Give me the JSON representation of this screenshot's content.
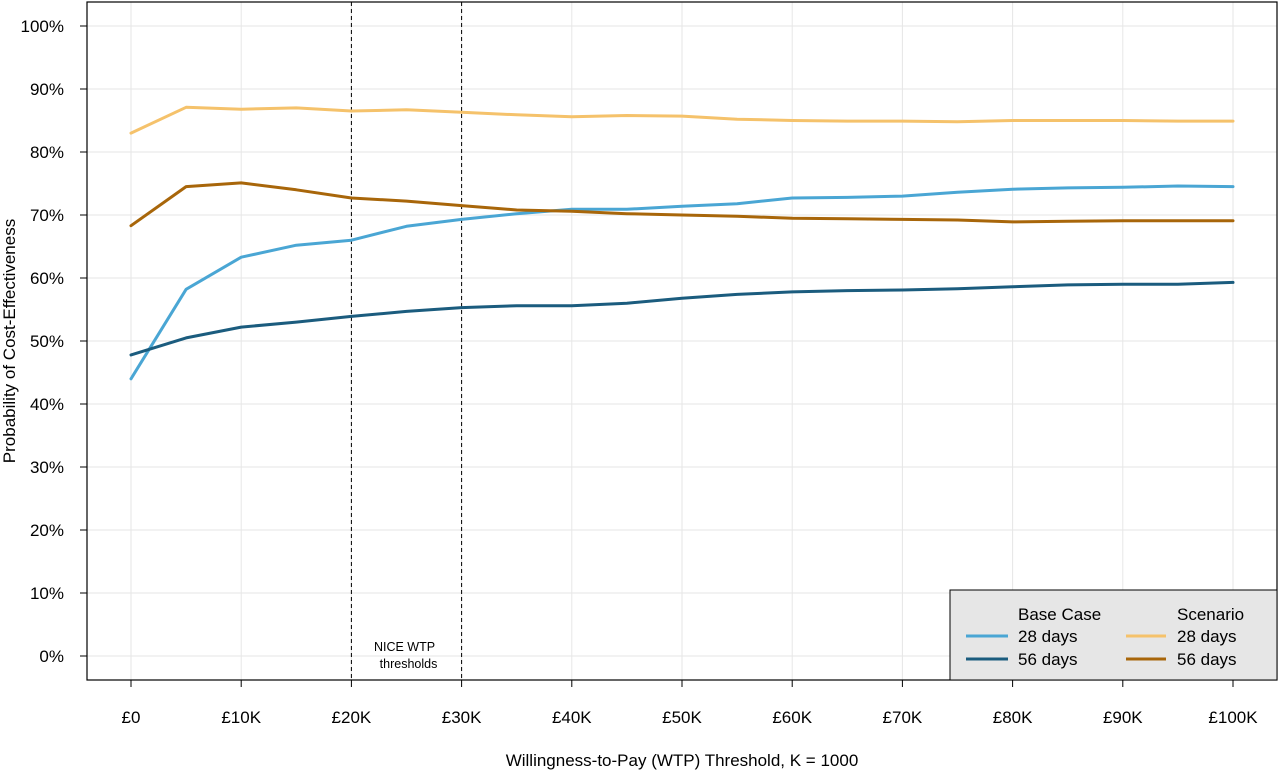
{
  "chart_data": {
    "type": "line",
    "title": "",
    "xlabel": "Willingness-to-Pay (WTP) Threshold, K = 1000",
    "ylabel": "Probability of Cost-Effectiveness",
    "xlim": [
      0,
      100000
    ],
    "ylim": [
      0,
      1
    ],
    "grid": true,
    "x_ticks": [
      0,
      10000,
      20000,
      30000,
      40000,
      50000,
      60000,
      70000,
      80000,
      90000,
      100000
    ],
    "x_tick_labels": [
      "£0",
      "£10K",
      "£20K",
      "£30K",
      "£40K",
      "£50K",
      "£60K",
      "£70K",
      "£80K",
      "£90K",
      "£100K"
    ],
    "y_ticks": [
      0,
      0.1,
      0.2,
      0.3,
      0.4,
      0.5,
      0.6,
      0.7,
      0.8,
      0.9,
      1.0
    ],
    "y_tick_labels": [
      "0%",
      "10%",
      "20%",
      "30%",
      "40%",
      "50%",
      "60%",
      "70%",
      "80%",
      "90%",
      "100%"
    ],
    "reference_lines": [
      20000,
      30000
    ],
    "annotation": "NICE WTP\nthresholds",
    "legend": {
      "placement": "bottom-right",
      "groups": [
        {
          "title": "Base Case",
          "entries": [
            "28 days",
            "56 days"
          ]
        },
        {
          "title": "Scenario",
          "entries": [
            "28 days",
            "56 days"
          ]
        }
      ]
    },
    "x": [
      0,
      5000,
      10000,
      15000,
      20000,
      25000,
      30000,
      35000,
      40000,
      45000,
      50000,
      55000,
      60000,
      65000,
      70000,
      75000,
      80000,
      85000,
      90000,
      95000,
      100000
    ],
    "series": [
      {
        "group": "Base Case",
        "name": "28 days",
        "color": "#4aa6d4",
        "values": [
          0.44,
          0.582,
          0.633,
          0.652,
          0.66,
          0.682,
          0.693,
          0.702,
          0.709,
          0.709,
          0.714,
          0.718,
          0.727,
          0.728,
          0.73,
          0.736,
          0.741,
          0.743,
          0.744,
          0.746,
          0.745
        ]
      },
      {
        "group": "Base Case",
        "name": "56 days",
        "color": "#1b5c7e",
        "values": [
          0.478,
          0.505,
          0.522,
          0.53,
          0.539,
          0.547,
          0.553,
          0.556,
          0.556,
          0.56,
          0.568,
          0.574,
          0.578,
          0.58,
          0.581,
          0.583,
          0.586,
          0.589,
          0.59,
          0.59,
          0.593
        ]
      },
      {
        "group": "Scenario",
        "name": "28 days",
        "color": "#f5c26b",
        "values": [
          0.83,
          0.871,
          0.868,
          0.87,
          0.865,
          0.867,
          0.863,
          0.859,
          0.856,
          0.858,
          0.857,
          0.852,
          0.85,
          0.849,
          0.849,
          0.848,
          0.85,
          0.85,
          0.85,
          0.849,
          0.849
        ]
      },
      {
        "group": "Scenario",
        "name": "56 days",
        "color": "#a8660a",
        "values": [
          0.683,
          0.745,
          0.751,
          0.74,
          0.727,
          0.722,
          0.715,
          0.708,
          0.706,
          0.702,
          0.7,
          0.698,
          0.695,
          0.694,
          0.693,
          0.692,
          0.689,
          0.69,
          0.691,
          0.691,
          0.691
        ]
      }
    ]
  }
}
